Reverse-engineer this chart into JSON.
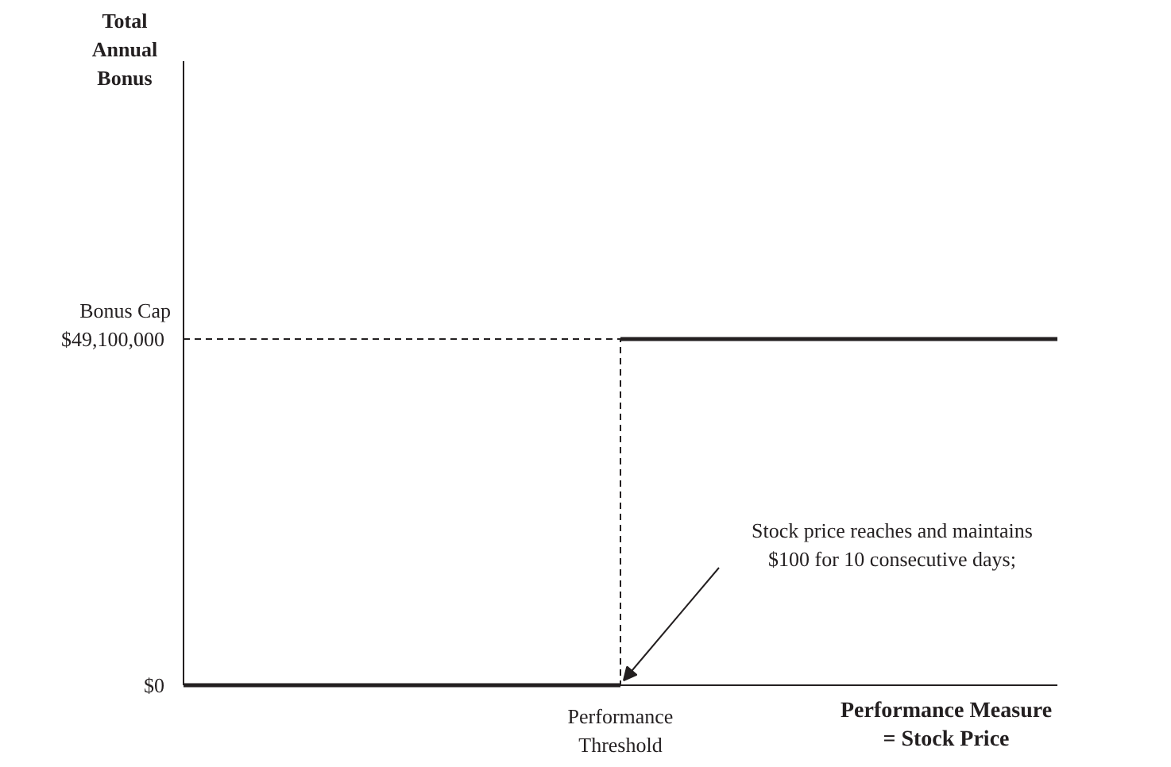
{
  "chart_data": {
    "type": "line",
    "ylabel": "Total Annual Bonus",
    "xlabel": "Performance Measure\n= Stock Price",
    "categories": [
      null,
      "Performance\nThreshold",
      null
    ],
    "ylim": [
      0,
      88500000
    ],
    "yticks": [
      {
        "value": 0,
        "label": "$0"
      },
      {
        "value": 49100000,
        "label": "$49,100,000"
      }
    ],
    "series": [
      {
        "color": "#231f20",
        "line_style": "solid",
        "values": [
          0,
          0,
          null
        ]
      },
      {
        "color": "#231f20",
        "line_style": "solid",
        "values": [
          null,
          49100000,
          49100000
        ]
      },
      {
        "type": "step",
        "color": "#231f20",
        "line_style": "dashed",
        "values": [
          49100000,
          0,
          null
        ]
      }
    ],
    "annotations": [
      "Bonus Cap",
      "Stock price reaches and maintains\n$100 for 10 consecutive days;"
    ],
    "grid": false,
    "marker": "none"
  }
}
